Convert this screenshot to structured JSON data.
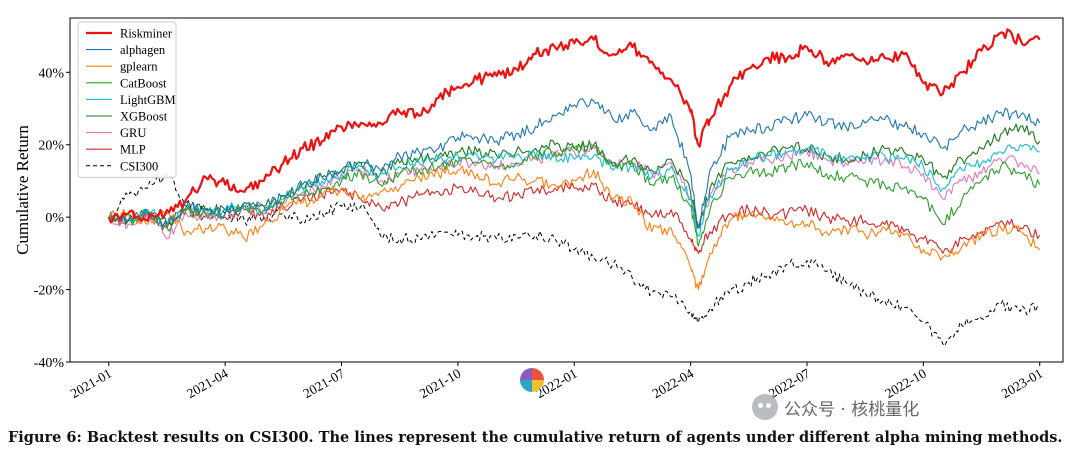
{
  "chart_data": {
    "type": "line",
    "title": "",
    "xlabel": "",
    "ylabel": "Cumulative Return",
    "ylim": [
      -40,
      55
    ],
    "xlim": [
      -1,
      24.6
    ],
    "x_ticks": [
      {
        "label": "2021-01",
        "value": 0
      },
      {
        "label": "2021-04",
        "value": 3
      },
      {
        "label": "2021-07",
        "value": 6
      },
      {
        "label": "2021-10",
        "value": 9
      },
      {
        "label": "2022-01",
        "value": 12
      },
      {
        "label": "2022-04",
        "value": 15
      },
      {
        "label": "2022-07",
        "value": 18
      },
      {
        "label": "2022-10",
        "value": 21
      },
      {
        "label": "2023-01",
        "value": 24
      }
    ],
    "y_ticks": [
      {
        "label": "-40%",
        "value": -40
      },
      {
        "label": "-20%",
        "value": -20
      },
      {
        "label": "0%",
        "value": 0
      },
      {
        "label": "20%",
        "value": 20
      },
      {
        "label": "40%",
        "value": 40
      }
    ],
    "legend_position": "top-left",
    "series": [
      {
        "name": "Riskminer",
        "color": "#ee1111",
        "width": 2.2,
        "dash": "",
        "x": [
          0,
          0.5,
          1,
          1.5,
          2,
          2.5,
          3,
          3.5,
          4,
          4.5,
          5,
          5.5,
          6,
          6.5,
          7,
          7.5,
          8,
          8.5,
          9,
          9.5,
          10,
          10.5,
          11,
          11.5,
          12,
          12.5,
          13,
          13.5,
          14,
          14.5,
          15,
          15.2,
          15.5,
          16,
          16.5,
          17,
          17.5,
          18,
          18.5,
          19,
          19.5,
          20,
          20.5,
          21,
          21.5,
          22,
          22.5,
          23,
          23.5,
          24
        ],
        "y": [
          0,
          1,
          -1,
          2,
          5,
          11,
          9,
          7,
          10,
          15,
          19,
          21,
          25,
          26,
          26,
          29,
          28,
          33,
          36,
          38,
          39,
          41,
          45,
          47,
          48,
          49,
          45,
          47,
          43,
          38,
          29,
          20,
          27,
          36,
          41,
          44,
          44,
          47,
          43,
          45,
          43,
          44,
          45,
          37,
          34,
          40,
          46,
          51,
          49,
          49
        ]
      },
      {
        "name": "alphagen",
        "color": "#1f77b4",
        "width": 1.1,
        "dash": "",
        "x": [
          0,
          0.5,
          1,
          1.5,
          2,
          2.5,
          3,
          3.5,
          4,
          4.5,
          5,
          5.5,
          6,
          6.5,
          7,
          7.5,
          8,
          8.5,
          9,
          9.5,
          10,
          10.5,
          11,
          11.5,
          12,
          12.5,
          13,
          13.5,
          14,
          14.5,
          15,
          15.2,
          15.5,
          16,
          16.5,
          17,
          17.5,
          18,
          18.5,
          19,
          19.5,
          20,
          20.5,
          21,
          21.5,
          22,
          22.5,
          23,
          23.5,
          24
        ],
        "y": [
          0,
          -1,
          1,
          -2,
          3,
          2,
          1,
          4,
          3,
          6,
          9,
          11,
          13,
          15,
          13,
          17,
          18,
          19,
          22,
          22,
          21,
          23,
          25,
          28,
          31,
          32,
          27,
          29,
          24,
          28,
          12,
          -3,
          13,
          22,
          24,
          25,
          27,
          28,
          26,
          25,
          26,
          27,
          25,
          23,
          19,
          24,
          26,
          29,
          28,
          26
        ]
      },
      {
        "name": "gplearn",
        "color": "#ff7f0e",
        "width": 1.1,
        "dash": "",
        "x": [
          0,
          0.5,
          1,
          1.5,
          2,
          2.5,
          3,
          3.5,
          4,
          4.5,
          5,
          5.5,
          6,
          6.5,
          7,
          7.5,
          8,
          8.5,
          9,
          9.5,
          10,
          10.5,
          11,
          11.5,
          12,
          12.5,
          13,
          13.5,
          14,
          14.5,
          15,
          15.2,
          15.5,
          16,
          16.5,
          17,
          17.5,
          18,
          18.5,
          19,
          19.5,
          20,
          20.5,
          21,
          21.5,
          22,
          22.5,
          23,
          23.5,
          24
        ],
        "y": [
          0,
          1,
          -2,
          1,
          -4,
          -3,
          -3,
          -6,
          -2,
          2,
          4,
          6,
          8,
          5,
          7,
          8,
          11,
          12,
          13,
          12,
          9,
          11,
          10,
          9,
          10,
          13,
          5,
          4,
          -4,
          -3,
          -14,
          -20,
          -10,
          -1,
          1,
          0,
          -2,
          -2,
          -4,
          -3,
          -5,
          -3,
          -5,
          -9,
          -11,
          -8,
          -5,
          -3,
          -4,
          -9
        ]
      },
      {
        "name": "CatBoost",
        "color": "#2ca02c",
        "width": 1.1,
        "dash": "",
        "x": [
          0,
          0.5,
          1,
          1.5,
          2,
          2.5,
          3,
          3.5,
          4,
          4.5,
          5,
          5.5,
          6,
          6.5,
          7,
          7.5,
          8,
          8.5,
          9,
          9.5,
          10,
          10.5,
          11,
          11.5,
          12,
          12.5,
          13,
          13.5,
          14,
          14.5,
          15,
          15.2,
          15.5,
          16,
          16.5,
          17,
          17.5,
          18,
          18.5,
          19,
          19.5,
          20,
          20.5,
          21,
          21.5,
          22,
          22.5,
          23,
          23.5,
          24
        ],
        "y": [
          0,
          -1,
          1,
          -3,
          2,
          1,
          1,
          3,
          2,
          4,
          6,
          8,
          10,
          12,
          9,
          12,
          13,
          14,
          15,
          15,
          14,
          15,
          17,
          18,
          19,
          20,
          14,
          15,
          9,
          11,
          3,
          -8,
          2,
          11,
          13,
          12,
          14,
          15,
          12,
          11,
          10,
          9,
          8,
          5,
          -2,
          5,
          10,
          14,
          12,
          9
        ]
      },
      {
        "name": "LightGBM",
        "color": "#17becf",
        "width": 1.1,
        "dash": "",
        "x": [
          0,
          0.5,
          1,
          1.5,
          2,
          2.5,
          3,
          3.5,
          4,
          4.5,
          5,
          5.5,
          6,
          6.5,
          7,
          7.5,
          8,
          8.5,
          9,
          9.5,
          10,
          10.5,
          11,
          11.5,
          12,
          12.5,
          13,
          13.5,
          14,
          14.5,
          15,
          15.2,
          15.5,
          16,
          16.5,
          17,
          17.5,
          18,
          18.5,
          19,
          19.5,
          20,
          20.5,
          21,
          21.5,
          22,
          22.5,
          23,
          23.5,
          24
        ],
        "y": [
          0,
          -1,
          2,
          -2,
          3,
          1,
          2,
          3,
          2,
          5,
          8,
          10,
          12,
          14,
          12,
          14,
          15,
          16,
          17,
          17,
          16,
          17,
          17,
          17,
          16,
          17,
          13,
          14,
          11,
          14,
          5,
          -5,
          6,
          13,
          16,
          17,
          18,
          19,
          17,
          16,
          16,
          17,
          16,
          14,
          8,
          13,
          15,
          18,
          20,
          18
        ]
      },
      {
        "name": "XGBoost",
        "color": "#1a7a1a",
        "width": 1.1,
        "dash": "",
        "x": [
          0,
          0.5,
          1,
          1.5,
          2,
          2.5,
          3,
          3.5,
          4,
          4.5,
          5,
          5.5,
          6,
          6.5,
          7,
          7.5,
          8,
          8.5,
          9,
          9.5,
          10,
          10.5,
          11,
          11.5,
          12,
          12.5,
          13,
          13.5,
          14,
          14.5,
          15,
          15.2,
          15.5,
          16,
          16.5,
          17,
          17.5,
          18,
          18.5,
          19,
          19.5,
          20,
          20.5,
          21,
          21.5,
          22,
          22.5,
          23,
          23.5,
          24
        ],
        "y": [
          0,
          -1,
          2,
          -2,
          3,
          2,
          2,
          4,
          3,
          6,
          8,
          11,
          13,
          15,
          12,
          15,
          16,
          17,
          18,
          18,
          17,
          18,
          19,
          20,
          19,
          20,
          15,
          16,
          13,
          16,
          7,
          -3,
          8,
          15,
          17,
          18,
          19,
          19,
          17,
          16,
          17,
          19,
          18,
          16,
          11,
          16,
          19,
          23,
          25,
          21
        ]
      },
      {
        "name": "GRU",
        "color": "#e377c2",
        "width": 1.1,
        "dash": "",
        "x": [
          0,
          0.5,
          1,
          1.5,
          2,
          2.5,
          3,
          3.5,
          4,
          4.5,
          5,
          5.5,
          6,
          6.5,
          7,
          7.5,
          8,
          8.5,
          9,
          9.5,
          10,
          10.5,
          11,
          11.5,
          12,
          12.5,
          13,
          13.5,
          14,
          14.5,
          15,
          15.2,
          15.5,
          16,
          16.5,
          17,
          17.5,
          18,
          18.5,
          19,
          19.5,
          20,
          20.5,
          21,
          21.5,
          22,
          22.5,
          23,
          23.5,
          24
        ],
        "y": [
          0,
          -2,
          1,
          -6,
          1,
          0,
          1,
          3,
          1,
          4,
          7,
          9,
          11,
          13,
          10,
          12,
          13,
          14,
          15,
          15,
          14,
          15,
          16,
          17,
          18,
          19,
          14,
          15,
          12,
          15,
          5,
          -3,
          6,
          13,
          15,
          16,
          17,
          18,
          16,
          15,
          15,
          16,
          14,
          12,
          5,
          10,
          12,
          16,
          15,
          12
        ]
      },
      {
        "name": "MLP",
        "color": "#d62728",
        "width": 1.1,
        "dash": "",
        "x": [
          0,
          0.5,
          1,
          1.5,
          2,
          2.5,
          3,
          3.5,
          4,
          4.5,
          5,
          5.5,
          6,
          6.5,
          7,
          7.5,
          8,
          8.5,
          9,
          9.5,
          10,
          10.5,
          11,
          11.5,
          12,
          12.5,
          13,
          13.5,
          14,
          14.5,
          15,
          15.2,
          15.5,
          16,
          16.5,
          17,
          17.5,
          18,
          18.5,
          19,
          19.5,
          20,
          20.5,
          21,
          21.5,
          22,
          22.5,
          23,
          23.5,
          24
        ],
        "y": [
          0,
          -1,
          1,
          -3,
          2,
          0,
          0,
          2,
          0,
          3,
          5,
          6,
          8,
          5,
          3,
          4,
          6,
          7,
          8,
          7,
          5,
          6,
          7,
          8,
          8,
          9,
          4,
          4,
          0,
          2,
          -6,
          -10,
          -4,
          1,
          2,
          1,
          1,
          2,
          0,
          -1,
          -1,
          -2,
          -4,
          -6,
          -10,
          -6,
          -4,
          -1,
          -3,
          -5
        ]
      },
      {
        "name": "CSI300",
        "color": "#000000",
        "width": 1.0,
        "dash": "4,3",
        "x": [
          0,
          0.5,
          1,
          1.5,
          2,
          2.5,
          3,
          3.5,
          4,
          4.5,
          5,
          5.5,
          6,
          6.5,
          7,
          7.5,
          8,
          8.5,
          9,
          9.5,
          10,
          10.5,
          11,
          11.5,
          12,
          12.5,
          13,
          13.5,
          14,
          14.5,
          15,
          15.2,
          15.5,
          16,
          16.5,
          17,
          17.5,
          18,
          18.5,
          19,
          19.5,
          20,
          20.5,
          21,
          21.5,
          22,
          22.5,
          23,
          23.5,
          24
        ],
        "y": [
          0,
          6,
          8,
          12,
          4,
          2,
          1,
          -1,
          0,
          1,
          -1,
          1,
          3,
          3,
          -5,
          -6,
          -6,
          -4,
          -5,
          -5,
          -6,
          -5,
          -5,
          -6,
          -9,
          -11,
          -13,
          -17,
          -21,
          -22,
          -26,
          -29,
          -25,
          -21,
          -18,
          -16,
          -13,
          -12,
          -15,
          -18,
          -21,
          -23,
          -25,
          -29,
          -35,
          -30,
          -28,
          -24,
          -26,
          -25
        ]
      }
    ]
  },
  "caption": "Figure 6: Backtest results on CSI300. The lines represent the cumulative return of agents under different alpha mining methods.",
  "watermark": {
    "text": "公众号 · 核桃量化",
    "icon": "wechat-icon"
  }
}
